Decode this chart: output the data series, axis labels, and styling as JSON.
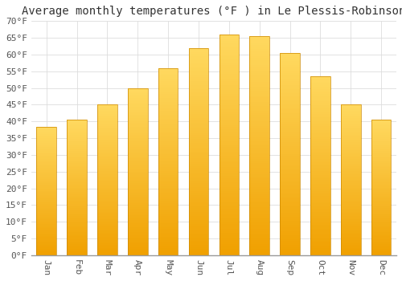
{
  "title": "Average monthly temperatures (°F ) in Le Plessis-Robinson",
  "months": [
    "Jan",
    "Feb",
    "Mar",
    "Apr",
    "May",
    "Jun",
    "Jul",
    "Aug",
    "Sep",
    "Oct",
    "Nov",
    "Dec"
  ],
  "values": [
    38.5,
    40.5,
    45.0,
    50.0,
    56.0,
    62.0,
    66.0,
    65.5,
    60.5,
    53.5,
    45.0,
    40.5
  ],
  "bar_color_top": "#FFD966",
  "bar_color_bottom": "#F0A000",
  "bar_edge_color": "#CC8800",
  "background_color": "#FFFFFF",
  "grid_color": "#DDDDDD",
  "yticks": [
    0,
    5,
    10,
    15,
    20,
    25,
    30,
    35,
    40,
    45,
    50,
    55,
    60,
    65,
    70
  ],
  "ylim": [
    0,
    70
  ],
  "title_fontsize": 10,
  "tick_fontsize": 8,
  "font_family": "monospace"
}
